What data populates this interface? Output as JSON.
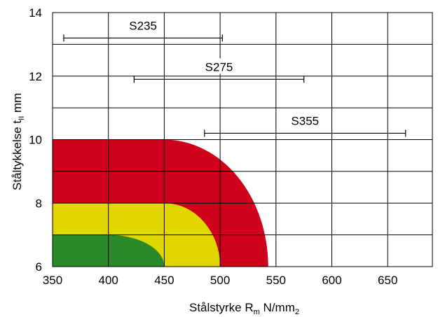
{
  "chart_data": {
    "type": "area",
    "x_axis": {
      "label": {
        "prefix": "Stålstyrke R",
        "sub": "m",
        "mid": " N/mm",
        "sup_sub": "2"
      },
      "range": [
        350,
        690
      ],
      "ticks": [
        350,
        400,
        450,
        500,
        550,
        600,
        650
      ]
    },
    "y_axis": {
      "label": {
        "prefix": "Ståltykkelse t",
        "sub": "II",
        "suffix": " mm"
      },
      "range": [
        6,
        14
      ],
      "ticks": [
        6,
        8,
        10,
        12,
        14
      ],
      "grid_step": 1
    },
    "grid": true,
    "zones": [
      {
        "name": "red",
        "color": "#d0021b",
        "top_t": 10,
        "flat_until_rm": 450,
        "max_rm": 543
      },
      {
        "name": "yellow",
        "color": "#e2d600",
        "top_t": 8,
        "flat_until_rm": 450,
        "max_rm": 500
      },
      {
        "name": "green",
        "color": "#2a8a2a",
        "top_t": 7,
        "flat_until_rm": 400,
        "max_rm": 450
      }
    ],
    "ranges": [
      {
        "label": "S235",
        "rm_from": 360,
        "rm_to": 502,
        "t": 13.2
      },
      {
        "label": "S275",
        "rm_from": 423,
        "rm_to": 575,
        "t": 11.9
      },
      {
        "label": "S355",
        "rm_from": 486,
        "rm_to": 666,
        "t": 10.2
      }
    ]
  }
}
